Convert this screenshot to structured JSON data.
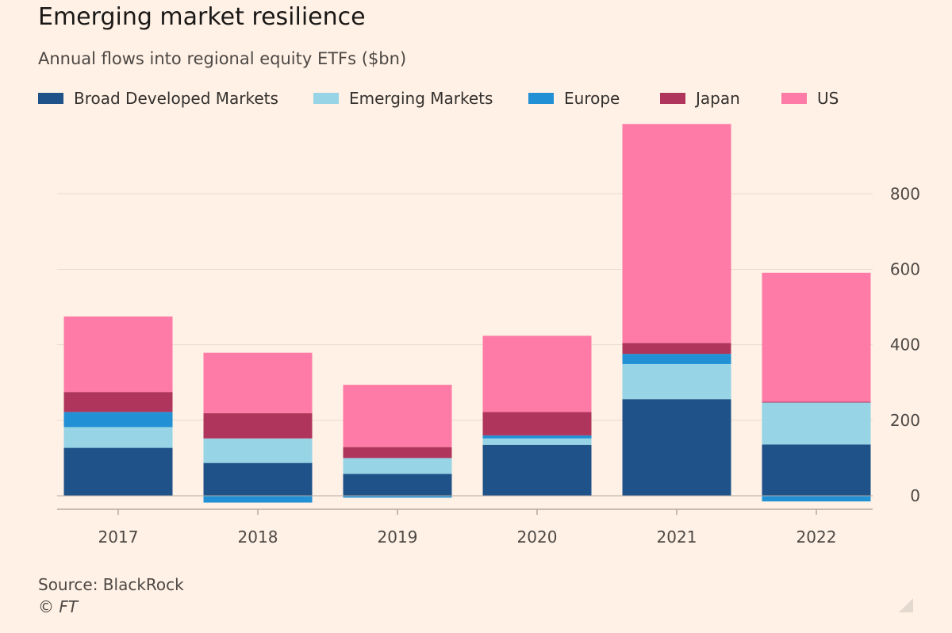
{
  "header": {
    "title": "Emerging market resilience",
    "subtitle": "Annual flows into regional equity ETFs ($bn)"
  },
  "footer": {
    "source": "Source: BlackRock",
    "credit": "© FT"
  },
  "icons": {
    "resize": "resize-corner-icon"
  },
  "chart_data": {
    "type": "bar",
    "stacked": true,
    "title": "Emerging market resilience",
    "subtitle": "Annual flows into regional equity ETFs ($bn)",
    "xlabel": "",
    "ylabel": "",
    "ylim": [
      -20,
      1000
    ],
    "yticks": [
      0,
      200,
      400,
      600,
      800
    ],
    "ytick_labels": [
      "0",
      "200",
      "400",
      "600",
      "800"
    ],
    "y_axis_position": "right",
    "grid": true,
    "legend_position": "top-left",
    "categories": [
      "2017",
      "2018",
      "2019",
      "2020",
      "2021",
      "2022"
    ],
    "series": [
      {
        "name": "Broad Developed Markets",
        "color": "#1f5289",
        "values": [
          127,
          87,
          58,
          135,
          256,
          136
        ]
      },
      {
        "name": "Emerging Markets",
        "color": "#96d4e6",
        "values": [
          55,
          65,
          42,
          17,
          93,
          111
        ]
      },
      {
        "name": "Europe",
        "color": "#2290d4",
        "values": [
          40,
          -18,
          -5,
          8,
          27,
          -15
        ]
      },
      {
        "name": "Japan",
        "color": "#b0355c",
        "values": [
          53,
          67,
          29,
          62,
          29,
          2
        ]
      },
      {
        "name": "US",
        "color": "#fd7ba6",
        "values": [
          200,
          160,
          165,
          202,
          580,
          342
        ]
      }
    ]
  }
}
